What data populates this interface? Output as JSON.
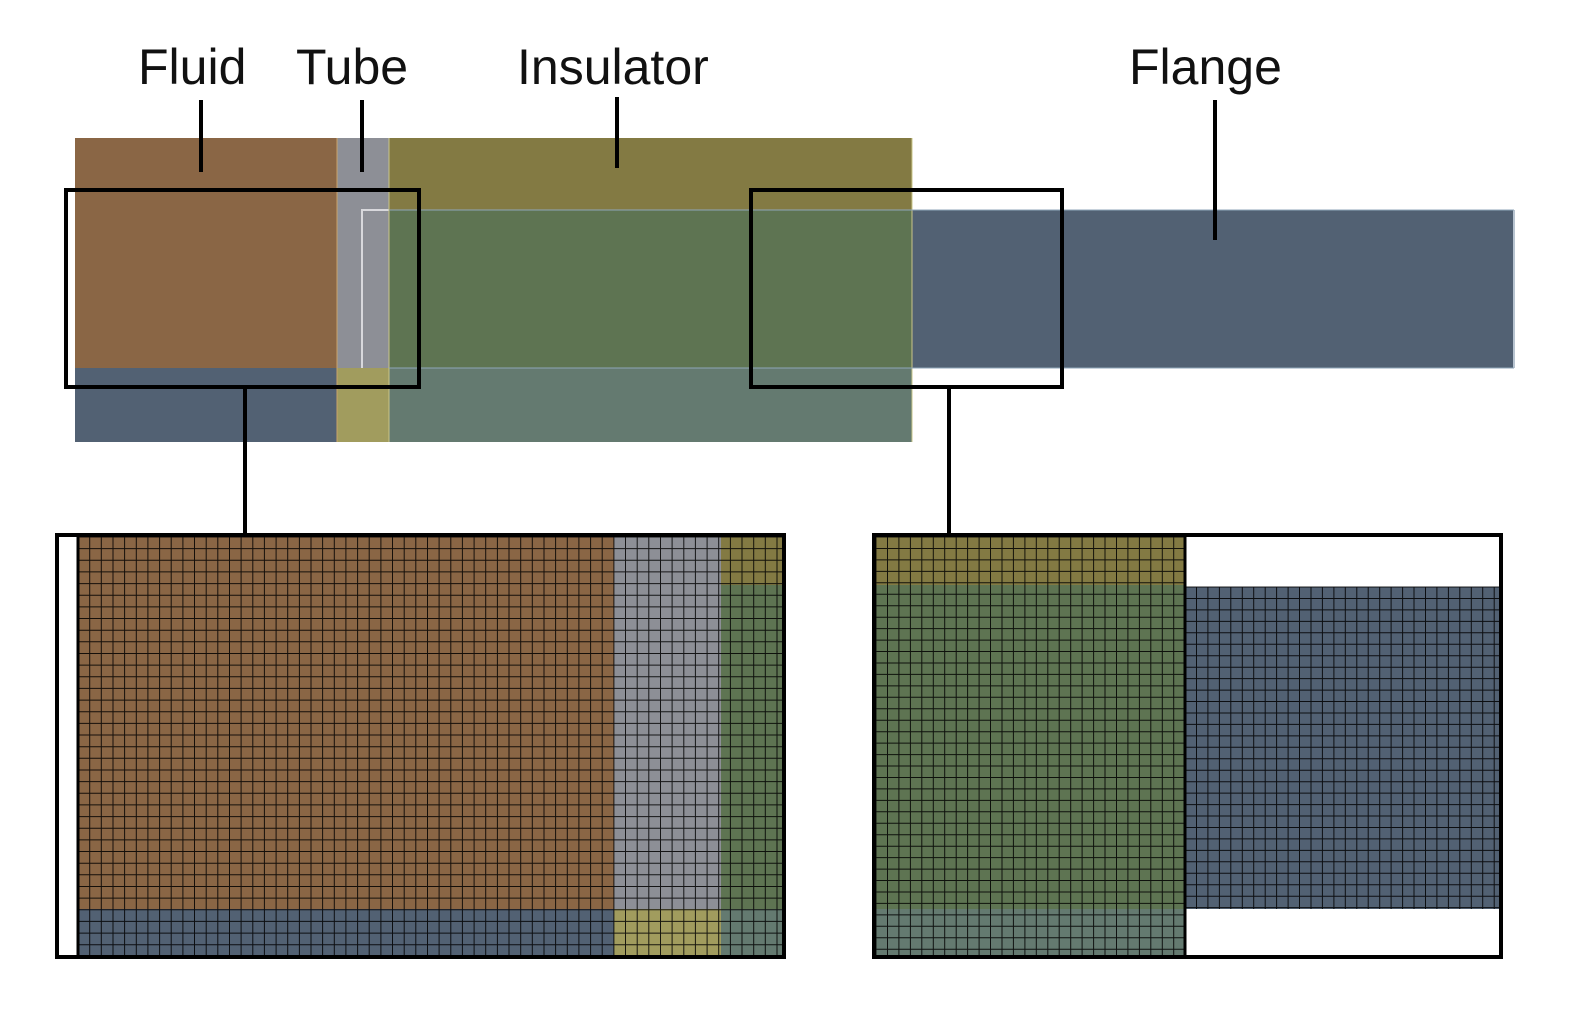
{
  "labels": {
    "fluid": "Fluid",
    "tube": "Tube",
    "insulator": "Insulator",
    "flange": "Flange"
  },
  "colors": {
    "fluid": "#8a6645",
    "tube": "#8d8f96",
    "insulator_top": "#837a43",
    "insulator_mid": "#5e7452",
    "insulator_bottom": "#647a70",
    "flange": "#526173",
    "tube_bottom": "#a19c5e",
    "fluid_bottom": "#526173",
    "mesh_line": "#000000",
    "frame": "#000000"
  }
}
